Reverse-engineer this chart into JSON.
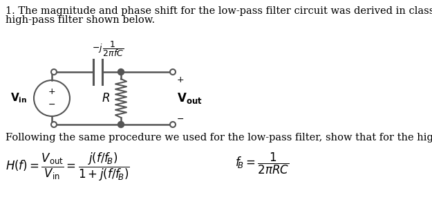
{
  "text_line1": "1. The magnitude and phase shift for the low-pass filter circuit was derived in class. Consider the",
  "text_line2": "high-pass filter shown below.",
  "text_following": "Following the same procedure we used for the low-pass filter, show that for the high-pass filter,",
  "background_color": "#ffffff",
  "text_color": "#000000",
  "line_color": "#555555",
  "font_size_body": 10.5,
  "cap_label": "$-j\\,\\dfrac{1}{2\\pi fC}$",
  "eq1": "$H(f)=\\dfrac{V_{\\mathrm{out}}}{V_{\\mathrm{in}}}=\\dfrac{j(f/f_{\\!B})}{1+j(f/f_{\\!B})}$",
  "eq2": "$f_{\\!B}=\\dfrac{1}{2\\pi RC}$"
}
